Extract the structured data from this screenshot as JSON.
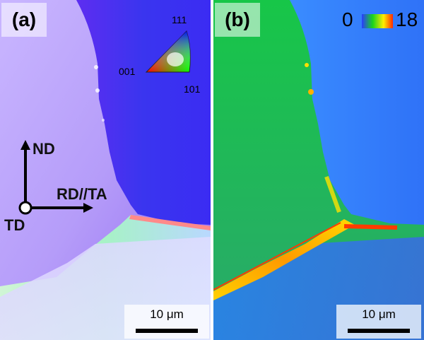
{
  "panel_a": {
    "label": "(a)",
    "ipf_key": {
      "top": "111",
      "left": "001",
      "right": "101"
    },
    "axes": {
      "up": "ND",
      "right": "RD//TA",
      "origin": "TD"
    },
    "scale_bar": "10 μm"
  },
  "panel_b": {
    "label": "(b)",
    "colorbar": {
      "min": "0",
      "max": "18",
      "colors": [
        "#2a3cff",
        "#19d41c",
        "#ffee00",
        "#ff2a00"
      ]
    },
    "scale_bar": "10 μm"
  }
}
